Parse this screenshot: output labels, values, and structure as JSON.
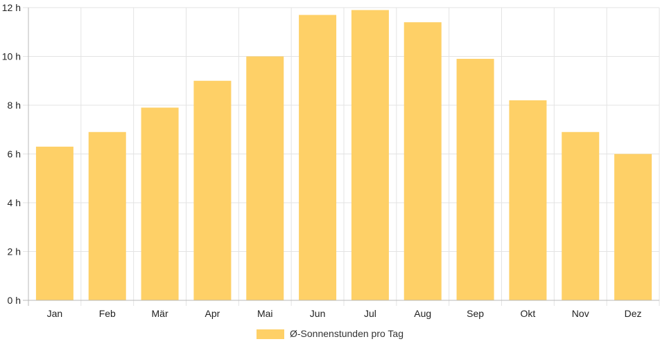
{
  "chart_data": {
    "type": "bar",
    "categories": [
      "Jan",
      "Feb",
      "Mär",
      "Apr",
      "Mai",
      "Jun",
      "Jul",
      "Aug",
      "Sep",
      "Okt",
      "Nov",
      "Dez"
    ],
    "series": [
      {
        "name": "Ø-Sonnenstunden pro Tag",
        "values": [
          6.3,
          6.9,
          7.9,
          9.0,
          10.0,
          11.7,
          11.9,
          11.4,
          9.9,
          8.2,
          6.9,
          6.0
        ],
        "color": "#fed067"
      }
    ],
    "y_ticks": [
      "0 h",
      "2 h",
      "4 h",
      "6 h",
      "8 h",
      "10 h",
      "12 h"
    ],
    "ylim": [
      0,
      12
    ],
    "grid": true,
    "legend_position": "bottom"
  }
}
